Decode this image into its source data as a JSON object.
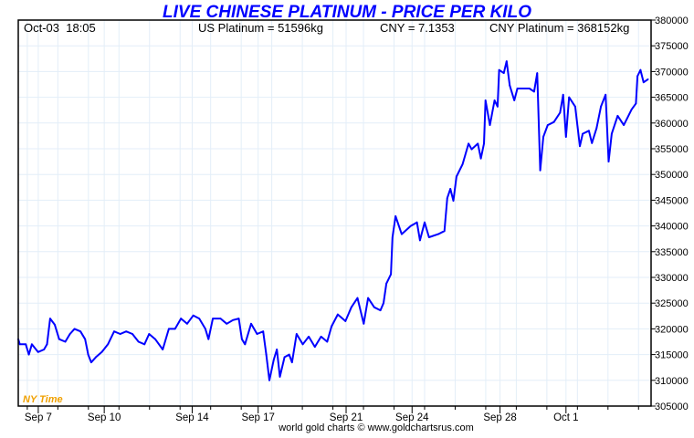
{
  "chart_data": {
    "type": "line",
    "title": "LIVE CHINESE PLATINUM - PRICE PER KILO",
    "info": {
      "timestamp": "Oct-03  18:05",
      "us_platinum": "US Platinum = 51596kg",
      "cny_rate": "CNY = 7.1353",
      "cny_platinum": "CNY Platinum = 368152kg"
    },
    "time_zone_label": "NY Time",
    "footer": "world gold charts © www.goldchartsrus.com",
    "xlabel": "",
    "ylabel": "",
    "x_units": "days since Sep 6",
    "xlim": [
      0.09,
      28.87
    ],
    "ylim": [
      305000,
      380000
    ],
    "y_ticks": [
      305000,
      310000,
      315000,
      320000,
      325000,
      330000,
      335000,
      340000,
      345000,
      350000,
      355000,
      360000,
      365000,
      370000,
      375000,
      380000
    ],
    "x_ticks": [
      {
        "label": "Sep 7",
        "x": 1
      },
      {
        "label": "Sep 10",
        "x": 4
      },
      {
        "label": "Sep 14",
        "x": 8
      },
      {
        "label": "Sep 17",
        "x": 11
      },
      {
        "label": "Sep 21",
        "x": 15
      },
      {
        "label": "Sep 24",
        "x": 18
      },
      {
        "label": "Sep 28",
        "x": 22
      },
      {
        "label": "Oct 1",
        "x": 25
      }
    ],
    "grid": true,
    "line_color": "#0000ff",
    "series": [
      {
        "name": "CNY Platinum per kilo",
        "x": [
          0.09,
          0.16,
          0.43,
          0.57,
          0.71,
          0.99,
          1.26,
          1.4,
          1.54,
          1.75,
          1.95,
          2.23,
          2.44,
          2.65,
          2.92,
          3.13,
          3.27,
          3.41,
          3.62,
          3.89,
          4.17,
          4.45,
          4.73,
          5.0,
          5.28,
          5.56,
          5.83,
          6.04,
          6.32,
          6.66,
          6.94,
          7.22,
          7.49,
          7.77,
          8.05,
          8.32,
          8.6,
          8.74,
          8.94,
          9.29,
          9.57,
          9.85,
          10.12,
          10.26,
          10.4,
          10.68,
          10.95,
          11.23,
          11.37,
          11.51,
          11.71,
          11.85,
          11.99,
          12.2,
          12.41,
          12.54,
          12.75,
          13.03,
          13.3,
          13.58,
          13.86,
          14.14,
          14.34,
          14.62,
          14.97,
          15.24,
          15.52,
          15.8,
          16.0,
          16.28,
          16.56,
          16.7,
          16.83,
          17.04,
          17.11,
          17.25,
          17.53,
          17.94,
          18.22,
          18.36,
          18.57,
          18.77,
          19.19,
          19.47,
          19.6,
          19.74,
          19.88,
          20.02,
          20.3,
          20.57,
          20.71,
          20.99,
          21.13,
          21.27,
          21.34,
          21.54,
          21.75,
          21.89,
          21.96,
          22.17,
          22.3,
          22.44,
          22.65,
          22.79,
          23.06,
          23.34,
          23.55,
          23.69,
          23.83,
          23.97,
          24.17,
          24.45,
          24.73,
          24.87,
          25.0,
          25.14,
          25.42,
          25.63,
          25.76,
          26.04,
          26.18,
          26.39,
          26.59,
          26.8,
          26.94,
          27.08,
          27.35,
          27.63,
          27.77,
          27.98,
          28.18,
          28.25,
          28.39,
          28.53,
          28.73
        ],
        "values": [
          318000,
          317000,
          317000,
          315000,
          317000,
          315500,
          316000,
          317000,
          322000,
          320800,
          318000,
          317500,
          319000,
          320000,
          319500,
          318000,
          315000,
          313500,
          314500,
          315500,
          317000,
          319500,
          319000,
          319500,
          319000,
          317500,
          317000,
          319000,
          318000,
          316000,
          320000,
          320000,
          322000,
          321000,
          322600,
          322000,
          320000,
          318000,
          322000,
          322000,
          321000,
          321700,
          322000,
          318000,
          317000,
          321000,
          319000,
          319500,
          315000,
          310000,
          314000,
          316000,
          310700,
          314500,
          315000,
          313500,
          319000,
          317000,
          318500,
          316500,
          318500,
          317500,
          320500,
          322800,
          321500,
          324200,
          326000,
          321000,
          326000,
          324200,
          323600,
          325000,
          328800,
          330600,
          337800,
          341900,
          338400,
          340000,
          340700,
          337200,
          340700,
          337800,
          338400,
          339000,
          345400,
          347200,
          344900,
          349600,
          352000,
          356000,
          354900,
          356000,
          353100,
          356000,
          364400,
          359600,
          364400,
          363200,
          370300,
          369700,
          372000,
          367300,
          364400,
          366700,
          366700,
          366700,
          366100,
          369700,
          350800,
          357300,
          359600,
          360200,
          362000,
          365500,
          357300,
          365000,
          363200,
          355500,
          357900,
          358500,
          356100,
          359000,
          363200,
          365500,
          352500,
          357900,
          361400,
          359600,
          360800,
          362600,
          363800,
          369100,
          370300,
          367900,
          368500
        ]
      }
    ]
  }
}
